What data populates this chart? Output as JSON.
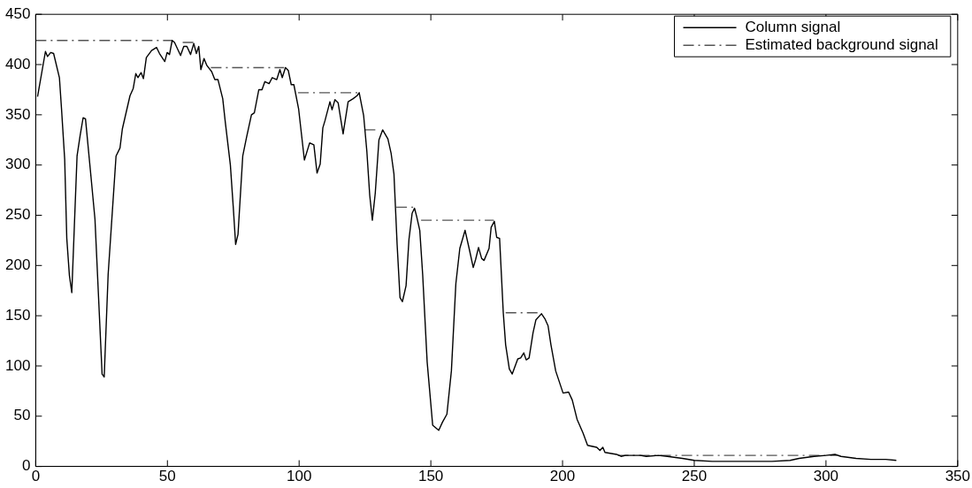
{
  "chart_data": {
    "type": "line",
    "xlim": [
      0,
      350
    ],
    "xticks": [
      0,
      50,
      100,
      150,
      200,
      250,
      300,
      350
    ],
    "ylim": [
      0,
      450
    ],
    "yticks": [
      0,
      50,
      100,
      150,
      200,
      250,
      300,
      350,
      400,
      450
    ],
    "grid": false,
    "legend": "top right",
    "marker": "none",
    "series": [
      {
        "name": "Column signal",
        "color": "#000000",
        "line_style": "solid",
        "x": [
          0.7,
          3.7,
          4.5,
          5.7,
          6.8,
          9,
          9.8,
          11,
          11.8,
          12.8,
          13.7,
          15.7,
          16.9,
          18,
          18.9,
          21,
          22.5,
          25.2,
          26,
          27.5,
          30.5,
          32,
          32.9,
          35.8,
          37,
          38,
          38.8,
          40,
          40.9,
          42,
          44,
          45.9,
          47,
          49,
          49.9,
          50.8,
          51.8,
          52.7,
          55,
          56.2,
          57.4,
          58.8,
          60,
          61,
          61.9,
          62.7,
          63.9,
          65,
          66.8,
          68,
          69.2,
          71,
          72,
          73.9,
          75,
          75.9,
          76.8,
          78.6,
          80,
          81.9,
          83,
          84.7,
          85.9,
          87,
          88.6,
          89.8,
          91.5,
          92.7,
          93.6,
          94.8,
          95.9,
          97,
          98,
          99.8,
          102,
          104,
          105.6,
          106.8,
          108,
          109,
          109.8,
          111.7,
          112.5,
          113.6,
          114.8,
          116.7,
          118.6,
          120.5,
          122,
          122.8,
          124.5,
          125.7,
          126.8,
          127.8,
          128.9,
          130.3,
          131.7,
          133.7,
          134.9,
          136,
          137.2,
          138.3,
          139.2,
          140.6,
          141.7,
          142.9,
          143.8,
          144.6,
          145.8,
          146.9,
          148.6,
          150.7,
          153,
          154.4,
          156.1,
          157.8,
          159.5,
          161,
          163,
          164.7,
          166.1,
          167,
          168.1,
          169.3,
          170.2,
          172.1,
          172.9,
          174.1,
          175,
          176.1,
          177.5,
          178.4,
          179.8,
          180.9,
          183,
          184.1,
          185.3,
          186.2,
          187.3,
          188.8,
          189.9,
          192,
          193.3,
          194.5,
          195.6,
          197.4,
          200.2,
          202.3,
          203.7,
          205.5,
          207.8,
          209.5,
          213,
          214.2,
          215.3,
          216.1,
          220.5,
          222.2,
          223.9,
          229.5,
          231.8,
          236.4,
          239.8,
          245.5,
          250,
          256.8,
          265.9,
          273,
          279.5,
          286.4,
          289.8,
          295.5,
          300,
          303.4,
          305.7,
          311.4,
          317,
          322.7,
          326.7
        ],
        "values": [
          368,
          413,
          408,
          412,
          411,
          387,
          356,
          306,
          227,
          190,
          173,
          309,
          330,
          347,
          346,
          288,
          246,
          92,
          89,
          191,
          309,
          317,
          336,
          369,
          376,
          391,
          387,
          392,
          386,
          407,
          414,
          417,
          411,
          403,
          412,
          410,
          424,
          422,
          409,
          418,
          418,
          410,
          421,
          411,
          418,
          395,
          406,
          399,
          393,
          385,
          385,
          366,
          342,
          300,
          258,
          221,
          231,
          309,
          327,
          350,
          352,
          375,
          375,
          383,
          381,
          387,
          385,
          395,
          387,
          397,
          394,
          380,
          380,
          356,
          305,
          322,
          320,
          292,
          301,
          337,
          344,
          363,
          355,
          365,
          362,
          331,
          363,
          366,
          369,
          372,
          349,
          314,
          270,
          245,
          272,
          325,
          335,
          326,
          312,
          291,
          221,
          168,
          164,
          180,
          226,
          252,
          257,
          249,
          235,
          191,
          104,
          41,
          36,
          44,
          52,
          95,
          182,
          217,
          235,
          215,
          198,
          206,
          218,
          207,
          205,
          217,
          238,
          244,
          228,
          227,
          153,
          121,
          97,
          92,
          107,
          108,
          113,
          106,
          108,
          133,
          146,
          152,
          147,
          140,
          121,
          95,
          73,
          74,
          66,
          47,
          33,
          21,
          19,
          16,
          19,
          14,
          12,
          10,
          11,
          11,
          10,
          11,
          10,
          8,
          6,
          5,
          5,
          5,
          5,
          6,
          8,
          10,
          11,
          12,
          10,
          8,
          7,
          7,
          6
        ]
      },
      {
        "name": "Estimated background signal",
        "color": "#555555",
        "line_style": "dashdot",
        "x": [
          0,
          52
        ],
        "values": [
          424,
          424
        ]
      },
      {
        "color": "#555555",
        "line_style": "dashdot",
        "x": [
          55.8,
          60
        ],
        "values": [
          422,
          422
        ]
      },
      {
        "color": "#555555",
        "line_style": "dashdot",
        "x": [
          66.5,
          94.3
        ],
        "values": [
          397,
          397
        ]
      },
      {
        "color": "#555555",
        "line_style": "dashdot",
        "x": [
          99.6,
          122.8
        ],
        "values": [
          372,
          372
        ]
      },
      {
        "color": "#555555",
        "line_style": "dashdot",
        "x": [
          124.9,
          129.1
        ],
        "values": [
          335,
          335
        ]
      },
      {
        "color": "#555555",
        "line_style": "dashdot",
        "x": [
          136.9,
          143.5
        ],
        "values": [
          258,
          258
        ]
      },
      {
        "color": "#555555",
        "line_style": "dashdot",
        "x": [
          146.3,
          173.9
        ],
        "values": [
          245,
          245
        ]
      },
      {
        "color": "#555555",
        "line_style": "dashdot",
        "x": [
          178.4,
          192
        ],
        "values": [
          153,
          153
        ]
      },
      {
        "color": "#555555",
        "line_style": "dashdot",
        "x": [
          221,
          304
        ],
        "values": [
          11,
          11
        ]
      }
    ]
  }
}
